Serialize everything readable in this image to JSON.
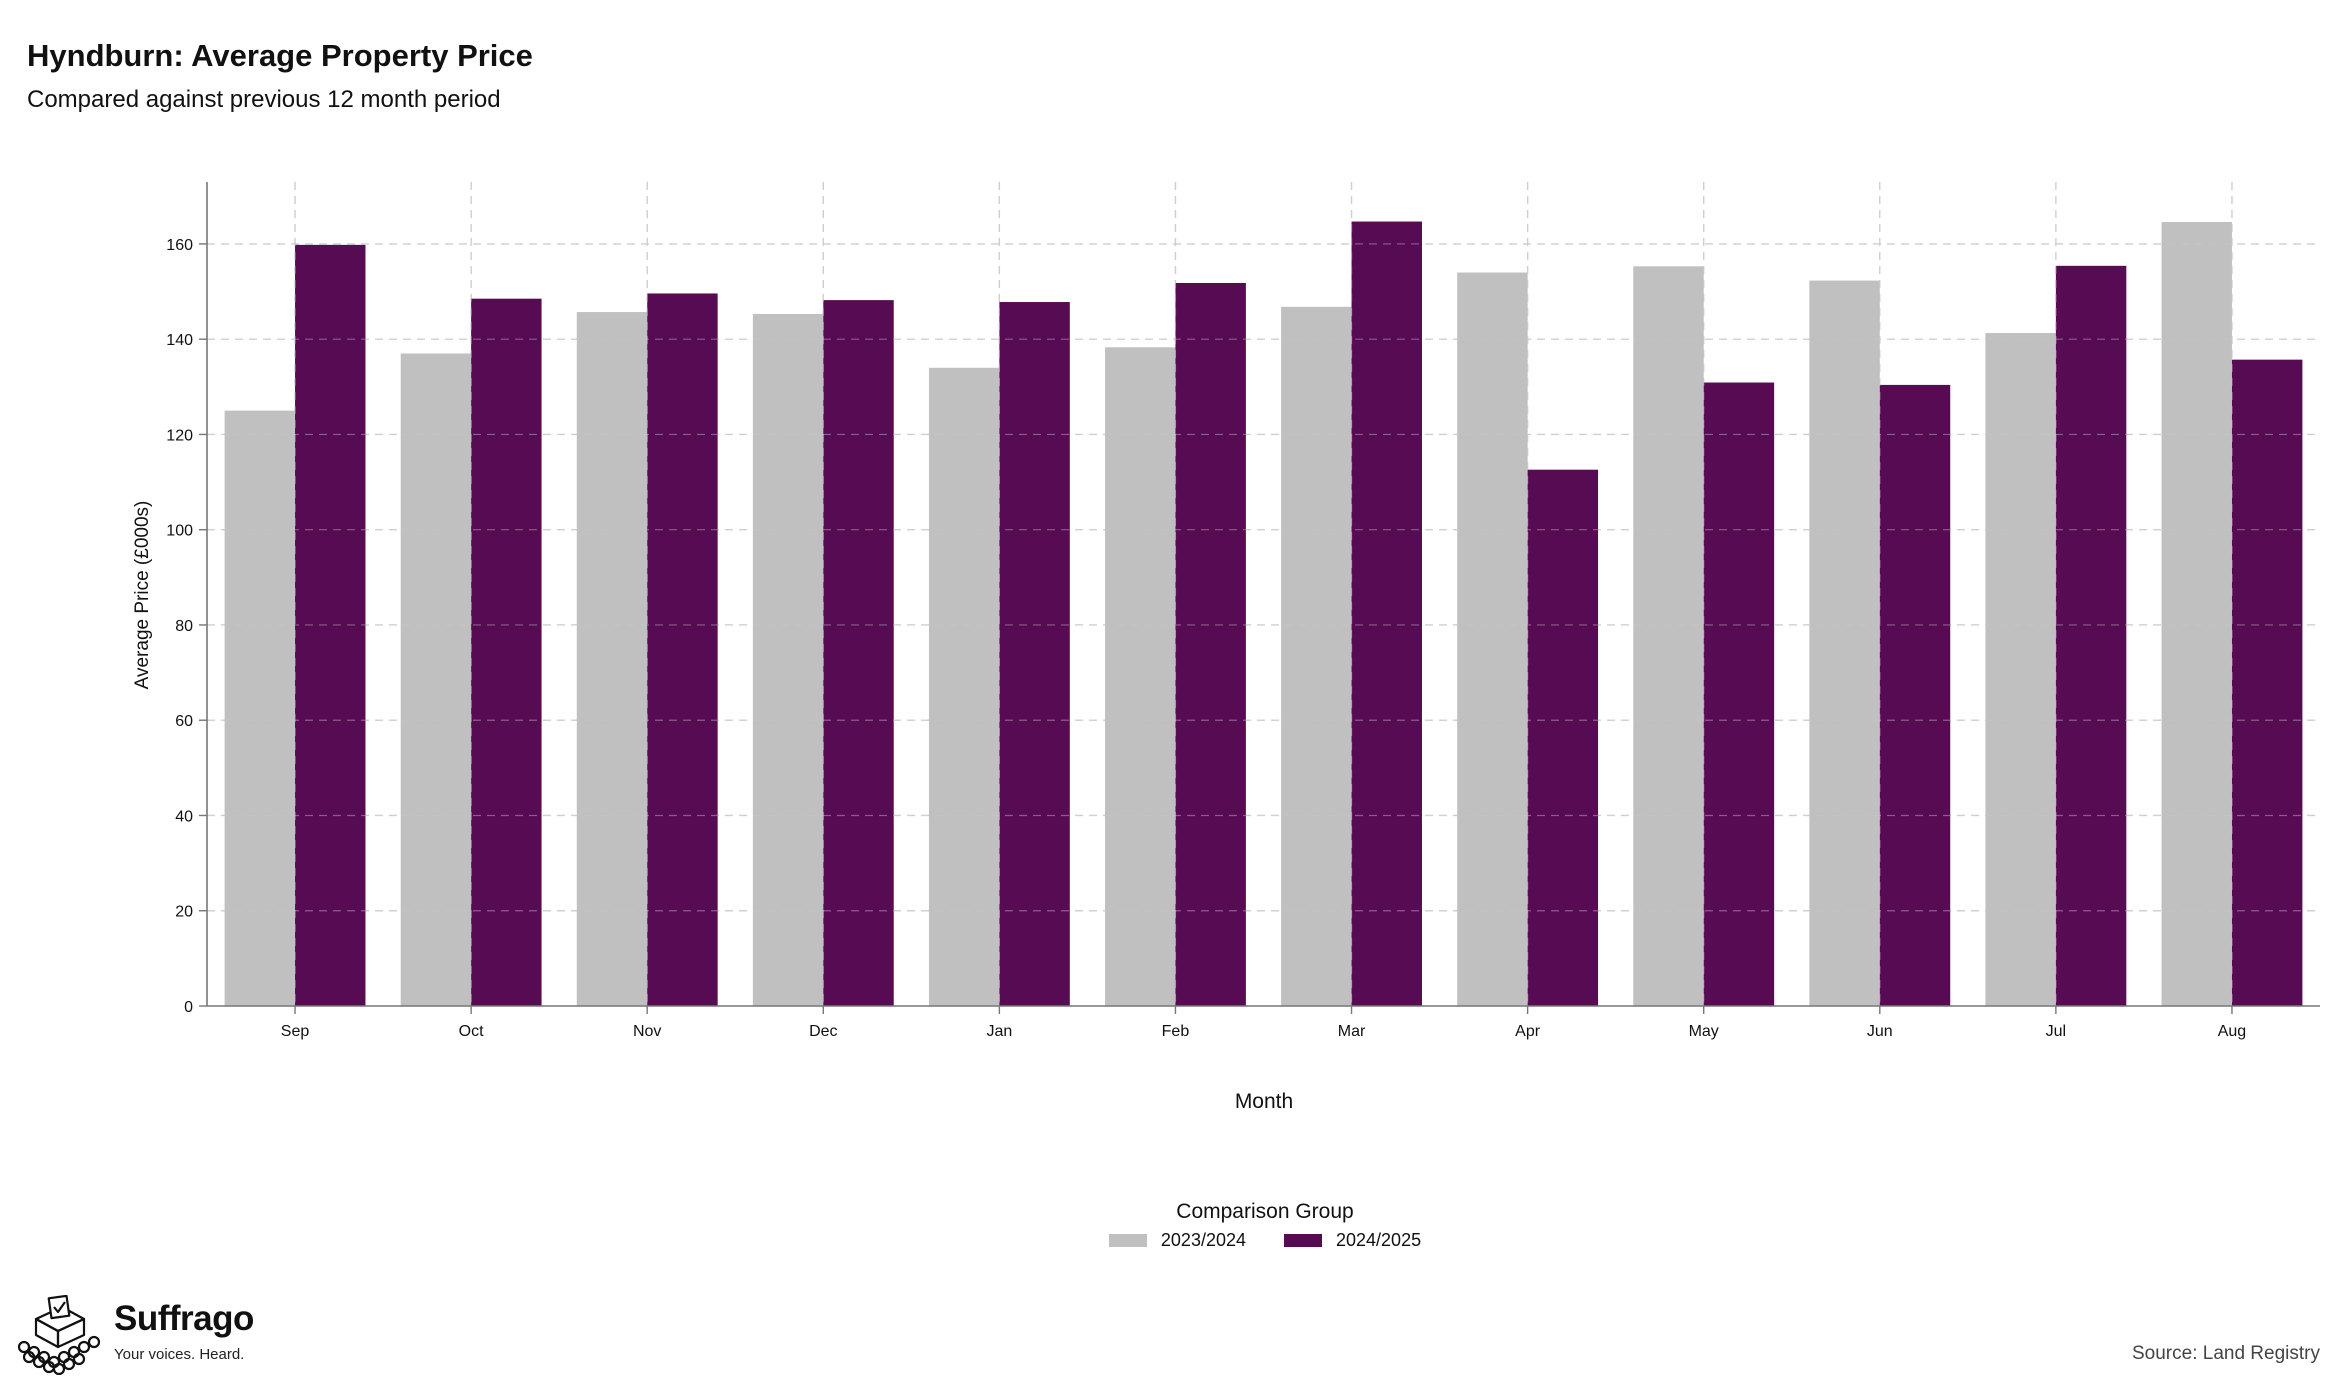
{
  "chart_data": {
    "type": "bar",
    "title": "Hyndburn: Average Property Price",
    "subtitle": "Compared against previous 12 month period",
    "xlabel": "Month",
    "ylabel": "Average Price (£000s)",
    "categories": [
      "Sep",
      "Oct",
      "Nov",
      "Dec",
      "Jan",
      "Feb",
      "Mar",
      "Apr",
      "May",
      "Jun",
      "Jul",
      "Aug"
    ],
    "series": [
      {
        "name": "2023/2024",
        "color": "#c0c0c0",
        "values": [
          125,
          137,
          145.7,
          145.3,
          134,
          138.3,
          146.8,
          154,
          155.3,
          152.3,
          141.3,
          164.6
        ]
      },
      {
        "name": "2024/2025",
        "color": "#560b52",
        "values": [
          159.8,
          148.5,
          149.6,
          148.2,
          147.8,
          151.8,
          164.7,
          112.6,
          130.9,
          130.4,
          155.4,
          135.7
        ]
      }
    ],
    "ylim": [
      0,
      173
    ],
    "yticks": [
      0,
      20,
      40,
      60,
      80,
      100,
      120,
      140,
      160
    ],
    "grid": true,
    "legend": {
      "title": "Comparison Group",
      "position": "bottom"
    }
  },
  "branding": {
    "logo_icon": "ballot-box-icon",
    "name": "Suffrago",
    "tagline": "Your voices. Heard."
  },
  "source": "Source: Land Registry"
}
